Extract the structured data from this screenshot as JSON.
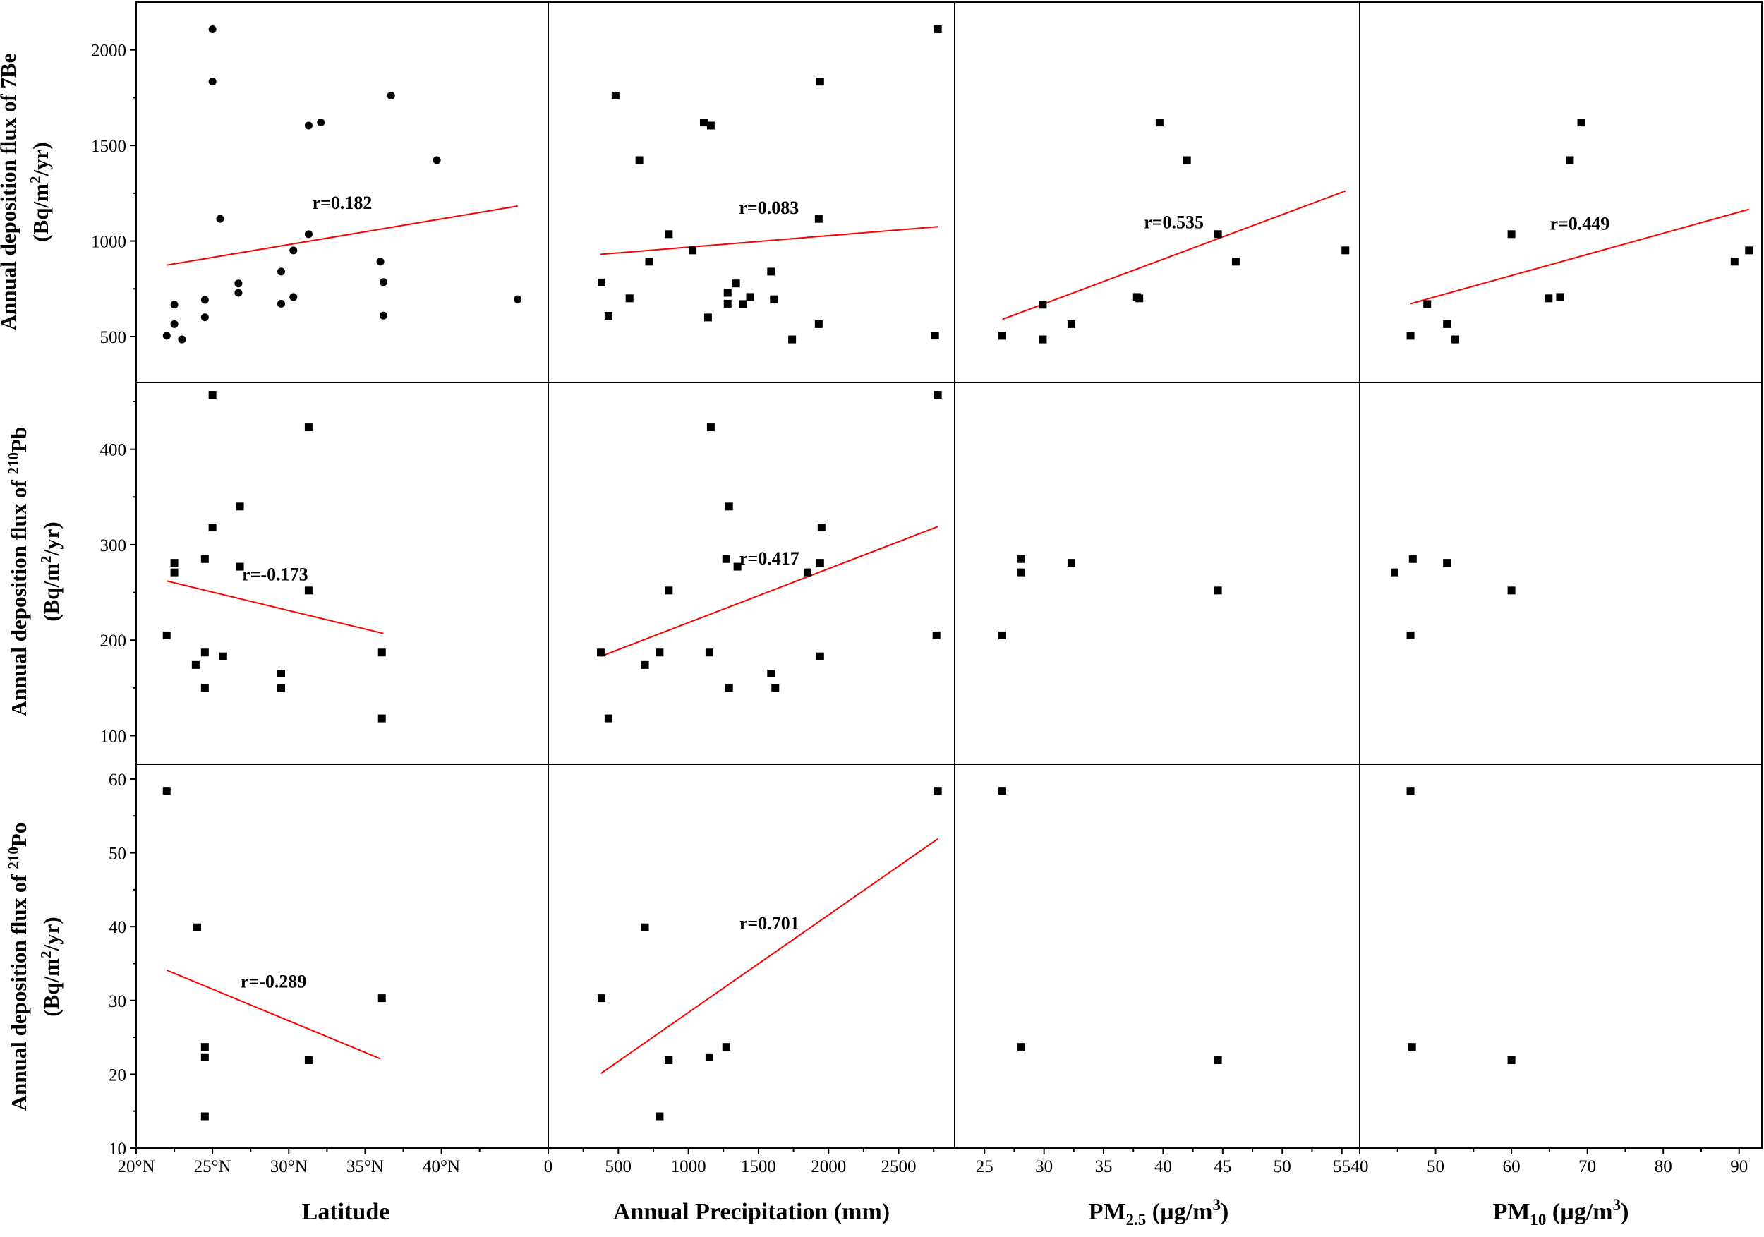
{
  "colors": {
    "points": "#000000",
    "fit_line": "#ff0000",
    "frame": "#000000",
    "background": "#ffffff"
  },
  "figure": {
    "x_titles": [
      "Latitude",
      "Annual Precipitation (mm)",
      "PM2.5 (µg/m3)",
      "PM10 (µg/m3)"
    ],
    "y_titles": [
      [
        "Annual deposition flux of 7Be",
        "(Bq/m2/yr)"
      ],
      [
        "Annual deposition flux of 210Pb",
        "(Bq/m2/yr)"
      ],
      [
        "Annual deposition flux of 210Po",
        "(Bq/m2/yr)"
      ]
    ]
  },
  "chart_data": {
    "type": "scatter",
    "layout": "3x4 matrix, shared axes per row and column",
    "columns": [
      {
        "xlabel": "Latitude",
        "xlim": [
          20,
          47
        ],
        "ticks": [
          20,
          25,
          30,
          35,
          40
        ],
        "tick_labels": [
          "20°N",
          "25°N",
          "30°N",
          "35°N",
          "40°N"
        ]
      },
      {
        "xlabel": "Annual Precipitation (mm)",
        "xlim": [
          0,
          2900
        ],
        "ticks": [
          0,
          500,
          1000,
          1500,
          2000,
          2500
        ],
        "tick_labels": [
          "0",
          "500",
          "1000",
          "1500",
          "2000",
          "2500"
        ]
      },
      {
        "xlabel": "PM2.5 (µg/m3)",
        "xlim": [
          22.5,
          56.5
        ],
        "ticks": [
          25,
          30,
          35,
          40,
          45,
          50,
          55
        ],
        "tick_labels": [
          "25",
          "30",
          "35",
          "40",
          "45",
          "50",
          "55"
        ]
      },
      {
        "xlabel": "PM10 (µg/m3)",
        "xlim": [
          40,
          93
        ],
        "ticks": [
          40,
          50,
          60,
          70,
          80,
          90
        ],
        "tick_labels": [
          "40",
          "50",
          "60",
          "70",
          "80",
          "90"
        ]
      }
    ],
    "rows": [
      {
        "ylabel": "Annual deposition flux of 7Be (Bq/m2/yr)",
        "ylim": [
          260,
          2250
        ],
        "ticks": [
          500,
          1000,
          1500,
          2000
        ]
      },
      {
        "ylabel": "Annual deposition flux of 210Pb (Bq/m2/yr)",
        "ylim": [
          70,
          470
        ],
        "ticks": [
          100,
          200,
          300,
          400
        ]
      },
      {
        "ylabel": "Annual deposition flux of 210Po (Bq/m2/yr)",
        "ylim": [
          10,
          62
        ],
        "ticks": [
          10,
          20,
          30,
          40,
          50,
          60
        ]
      }
    ],
    "panels": [
      {
        "row": 0,
        "col": 0,
        "marker": "circle",
        "r_label": "r=0.182",
        "fit_line": [
          [
            22,
            874
          ],
          [
            45,
            1183
          ]
        ],
        "points": [
          [
            22,
            504
          ],
          [
            22.5,
            565
          ],
          [
            22.5,
            667
          ],
          [
            23,
            485
          ],
          [
            24.5,
            692
          ],
          [
            24.5,
            601
          ],
          [
            25,
            2108
          ],
          [
            25,
            1834
          ],
          [
            25.5,
            1116
          ],
          [
            26.7,
            729
          ],
          [
            26.7,
            778
          ],
          [
            29.5,
            672
          ],
          [
            29.5,
            840
          ],
          [
            30.3,
            707
          ],
          [
            30.3,
            951
          ],
          [
            31.3,
            1604
          ],
          [
            31.3,
            1036
          ],
          [
            32.1,
            1620
          ],
          [
            36,
            892
          ],
          [
            36.2,
            785
          ],
          [
            36.2,
            610
          ],
          [
            36.7,
            1761
          ],
          [
            39.7,
            1423
          ],
          [
            45,
            695
          ]
        ]
      },
      {
        "row": 0,
        "col": 1,
        "marker": "square",
        "r_label": "r=0.083",
        "fit_line": [
          [
            370,
            930
          ],
          [
            2780,
            1075
          ]
        ],
        "points": [
          [
            380,
            783
          ],
          [
            430,
            609
          ],
          [
            480,
            1761
          ],
          [
            580,
            700
          ],
          [
            650,
            1423
          ],
          [
            720,
            892
          ],
          [
            860,
            1036
          ],
          [
            1030,
            951
          ],
          [
            1110,
            1620
          ],
          [
            1140,
            600
          ],
          [
            1160,
            1604
          ],
          [
            1280,
            729
          ],
          [
            1280,
            672
          ],
          [
            1340,
            778
          ],
          [
            1390,
            670
          ],
          [
            1440,
            707
          ],
          [
            1590,
            840
          ],
          [
            1610,
            695
          ],
          [
            1740,
            485
          ],
          [
            1930,
            1116
          ],
          [
            1930,
            565
          ],
          [
            1940,
            1834
          ],
          [
            2760,
            505
          ],
          [
            2780,
            2108
          ]
        ]
      },
      {
        "row": 0,
        "col": 2,
        "marker": "square",
        "r_label": "r=0.535",
        "fit_line": [
          [
            26.5,
            590
          ],
          [
            55.3,
            1262
          ]
        ],
        "points": [
          [
            26.5,
            504
          ],
          [
            29.9,
            667
          ],
          [
            29.9,
            485
          ],
          [
            32.3,
            565
          ],
          [
            37.8,
            707
          ],
          [
            38,
            700
          ],
          [
            39.7,
            1620
          ],
          [
            42,
            1423
          ],
          [
            44.6,
            1036
          ],
          [
            46.1,
            892
          ],
          [
            55.3,
            951
          ]
        ]
      },
      {
        "row": 0,
        "col": 3,
        "marker": "square",
        "r_label": "r=0.449",
        "fit_line": [
          [
            46.7,
            672
          ],
          [
            91.3,
            1166
          ]
        ],
        "points": [
          [
            46.7,
            504
          ],
          [
            48.9,
            670
          ],
          [
            51.5,
            565
          ],
          [
            52.6,
            485
          ],
          [
            60,
            1036
          ],
          [
            64.9,
            700
          ],
          [
            66.4,
            707
          ],
          [
            67.7,
            1423
          ],
          [
            69.2,
            1620
          ],
          [
            89.4,
            892
          ],
          [
            91.3,
            951
          ]
        ]
      },
      {
        "row": 1,
        "col": 0,
        "marker": "square",
        "r_label": "r=-0.173",
        "fit_line": [
          [
            22,
            262
          ],
          [
            36.2,
            207
          ]
        ],
        "points": [
          [
            22,
            205
          ],
          [
            22.5,
            281
          ],
          [
            22.5,
            271
          ],
          [
            23.9,
            174
          ],
          [
            24.5,
            150
          ],
          [
            24.5,
            187
          ],
          [
            24.5,
            285
          ],
          [
            25,
            318
          ],
          [
            25,
            457
          ],
          [
            25.7,
            183
          ],
          [
            26.8,
            340
          ],
          [
            26.8,
            277
          ],
          [
            29.5,
            165
          ],
          [
            29.5,
            150
          ],
          [
            31.3,
            423
          ],
          [
            31.3,
            252
          ],
          [
            36.1,
            187
          ],
          [
            36.1,
            118
          ]
        ]
      },
      {
        "row": 1,
        "col": 1,
        "marker": "square",
        "r_label": "r=0.417",
        "fit_line": [
          [
            375,
            183
          ],
          [
            2780,
            319
          ]
        ],
        "points": [
          [
            375,
            187
          ],
          [
            430,
            118
          ],
          [
            690,
            174
          ],
          [
            795,
            187
          ],
          [
            860,
            252
          ],
          [
            1150,
            187
          ],
          [
            1160,
            423
          ],
          [
            1270,
            285
          ],
          [
            1290,
            150
          ],
          [
            1290,
            340
          ],
          [
            1350,
            277
          ],
          [
            1590,
            165
          ],
          [
            1620,
            150
          ],
          [
            1850,
            271
          ],
          [
            1940,
            281
          ],
          [
            1940,
            183
          ],
          [
            1950,
            318
          ],
          [
            2770,
            205
          ],
          [
            2780,
            457
          ]
        ]
      },
      {
        "row": 1,
        "col": 2,
        "marker": "square",
        "r_label": "",
        "points": [
          [
            26.5,
            205
          ],
          [
            28.1,
            285
          ],
          [
            28.1,
            271
          ],
          [
            32.3,
            281
          ],
          [
            44.6,
            252
          ]
        ]
      },
      {
        "row": 1,
        "col": 3,
        "marker": "square",
        "r_label": "",
        "points": [
          [
            44.6,
            271
          ],
          [
            46.7,
            205
          ],
          [
            47,
            285
          ],
          [
            51.5,
            281
          ],
          [
            60,
            252
          ]
        ]
      },
      {
        "row": 2,
        "col": 0,
        "marker": "square",
        "r_label": "r=-0.289",
        "fit_line": [
          [
            22,
            34.1
          ],
          [
            36,
            22.1
          ]
        ],
        "points": [
          [
            22,
            58.4
          ],
          [
            24,
            39.9
          ],
          [
            24.5,
            23.7
          ],
          [
            24.5,
            22.3
          ],
          [
            24.5,
            14.3
          ],
          [
            31.3,
            21.9
          ],
          [
            36.1,
            30.3
          ]
        ]
      },
      {
        "row": 2,
        "col": 1,
        "marker": "square",
        "r_label": "r=0.701",
        "fit_line": [
          [
            375,
            20.1
          ],
          [
            2780,
            51.9
          ]
        ],
        "points": [
          [
            380,
            30.3
          ],
          [
            690,
            39.9
          ],
          [
            795,
            14.3
          ],
          [
            860,
            21.9
          ],
          [
            1150,
            22.3
          ],
          [
            1270,
            23.7
          ],
          [
            2780,
            58.4
          ]
        ]
      },
      {
        "row": 2,
        "col": 2,
        "marker": "square",
        "r_label": "",
        "points": [
          [
            26.5,
            58.4
          ],
          [
            28.1,
            23.7
          ],
          [
            44.6,
            21.9
          ]
        ]
      },
      {
        "row": 2,
        "col": 3,
        "marker": "square",
        "r_label": "",
        "points": [
          [
            46.7,
            58.4
          ],
          [
            46.9,
            23.7
          ],
          [
            60,
            21.9
          ]
        ]
      }
    ]
  }
}
